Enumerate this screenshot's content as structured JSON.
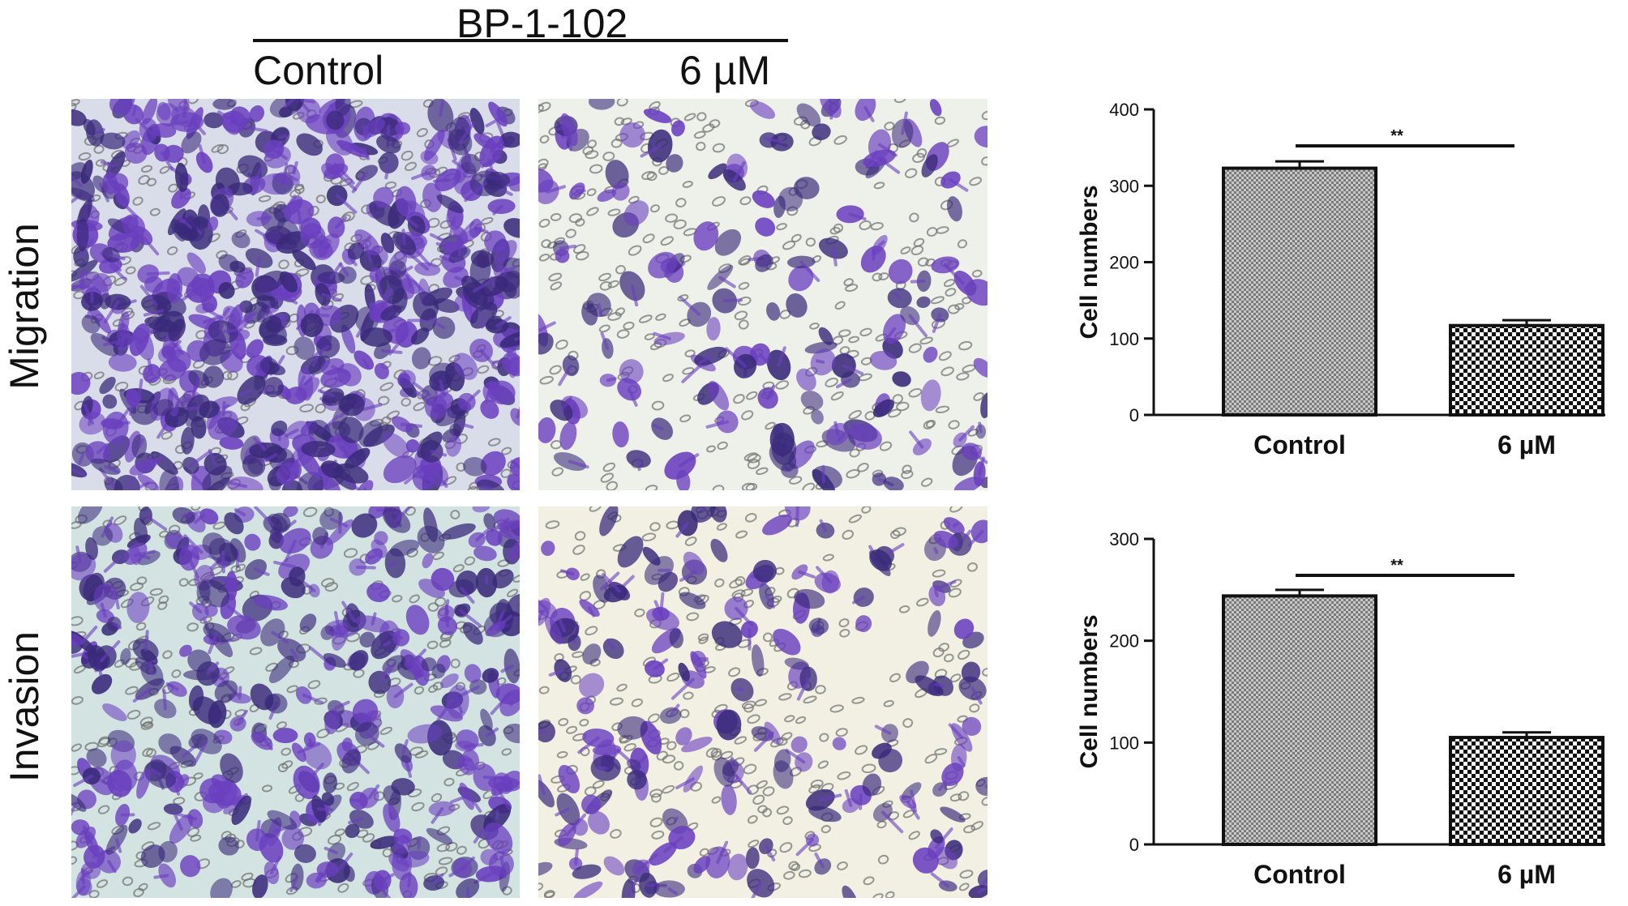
{
  "figure": {
    "header_group": "BP-1-102",
    "col_labels": [
      "Control",
      "6 µM"
    ],
    "row_labels": [
      "Migration",
      "Invasion"
    ],
    "panel_colors": {
      "control_migration_bg": "#d9dde9",
      "control_invasion_bg": "#d3e3e2",
      "treated_migration_bg": "#eef0ea",
      "treated_invasion_bg": "#f1f0e3",
      "stain": "#6a3fbf",
      "stain_dark": "#3a2a7a",
      "pore": "#6f6f6f"
    }
  },
  "chart_data": [
    {
      "type": "bar",
      "categories": [
        "Control",
        "6 µM"
      ],
      "values": [
        323,
        117
      ],
      "errors": [
        9,
        7
      ],
      "ylabel": "Cell numbers",
      "ylim": [
        0,
        400
      ],
      "yticks": [
        0,
        100,
        200,
        300,
        400
      ],
      "significance": "**",
      "grid": false
    },
    {
      "type": "bar",
      "categories": [
        "Control",
        "6 µM"
      ],
      "values": [
        244,
        105
      ],
      "errors": [
        6,
        5
      ],
      "ylabel": "Cell numbers",
      "ylim": [
        0,
        300
      ],
      "yticks": [
        0,
        100,
        200,
        300
      ],
      "significance": "**",
      "grid": false
    }
  ]
}
